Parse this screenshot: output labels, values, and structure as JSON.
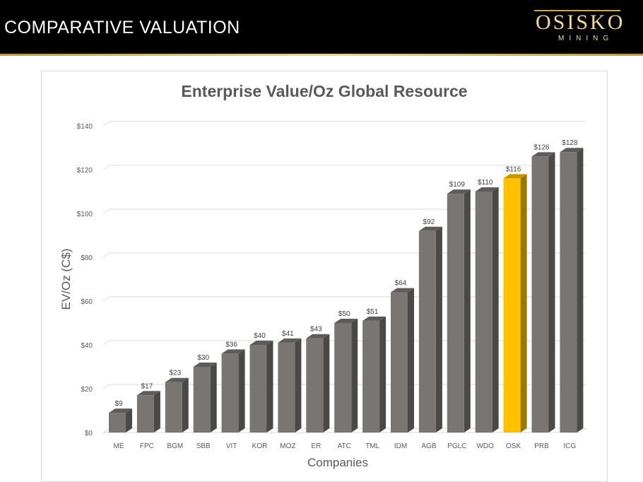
{
  "slide": {
    "title": "COMPARATIVE VALUATION",
    "logo_word": "OSISKO",
    "logo_sub": "MINING"
  },
  "colors": {
    "bar": "#787573",
    "bar_highlight": "#ffc000",
    "header_bg": "#000000",
    "accent_gold": "#c9a65a"
  },
  "chart_data": {
    "type": "bar",
    "title": "Enterprise Value/Oz Global Resource",
    "xlabel": "Companies",
    "ylabel": "EV/Oz (C$)",
    "ylim": [
      0,
      140
    ],
    "yticks": [
      0,
      20,
      40,
      60,
      80,
      100,
      120,
      140
    ],
    "ytick_labels": [
      "$0",
      "$20",
      "$40",
      "$60",
      "$80",
      "$100",
      "$120",
      "$140"
    ],
    "grid": true,
    "legend": "none",
    "categories": [
      "ME",
      "FPC",
      "BGM",
      "SBB",
      "VIT",
      "KOR",
      "MOZ",
      "ER",
      "ATC",
      "TML",
      "IDM",
      "AGB",
      "PGLC",
      "WDO",
      "OSK",
      "PRB",
      "ICG"
    ],
    "values": [
      9,
      17,
      23,
      30,
      36,
      40,
      41,
      43,
      50,
      51,
      64,
      92,
      109,
      110,
      116,
      126,
      128
    ],
    "value_labels": [
      "$9",
      "$17",
      "$23",
      "$30",
      "$36",
      "$40",
      "$41",
      "$43",
      "$50",
      "$51",
      "$64",
      "$92",
      "$109",
      "$110",
      "$116",
      "$126",
      "$128"
    ],
    "highlight": "OSK"
  }
}
